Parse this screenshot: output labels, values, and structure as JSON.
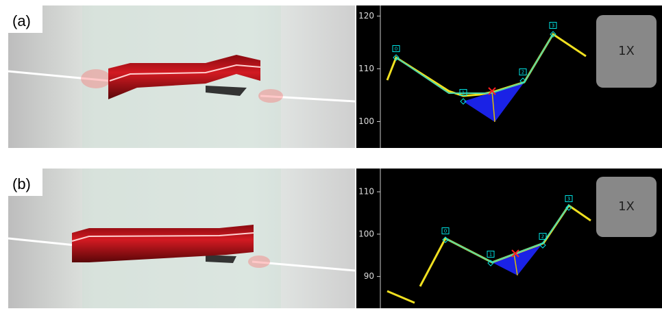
{
  "panels": [
    {
      "label": "(a)",
      "yticks": [
        100,
        110,
        120
      ],
      "ylim": [
        95,
        122
      ],
      "nodes": [
        "0",
        "1",
        "2",
        "3"
      ],
      "button": "1X"
    },
    {
      "label": "(b)",
      "yticks": [
        90,
        100,
        110
      ],
      "ylim": [
        82.5,
        115.5
      ],
      "nodes": [
        "0",
        "1",
        "2",
        "3"
      ],
      "button": "1X"
    }
  ]
}
